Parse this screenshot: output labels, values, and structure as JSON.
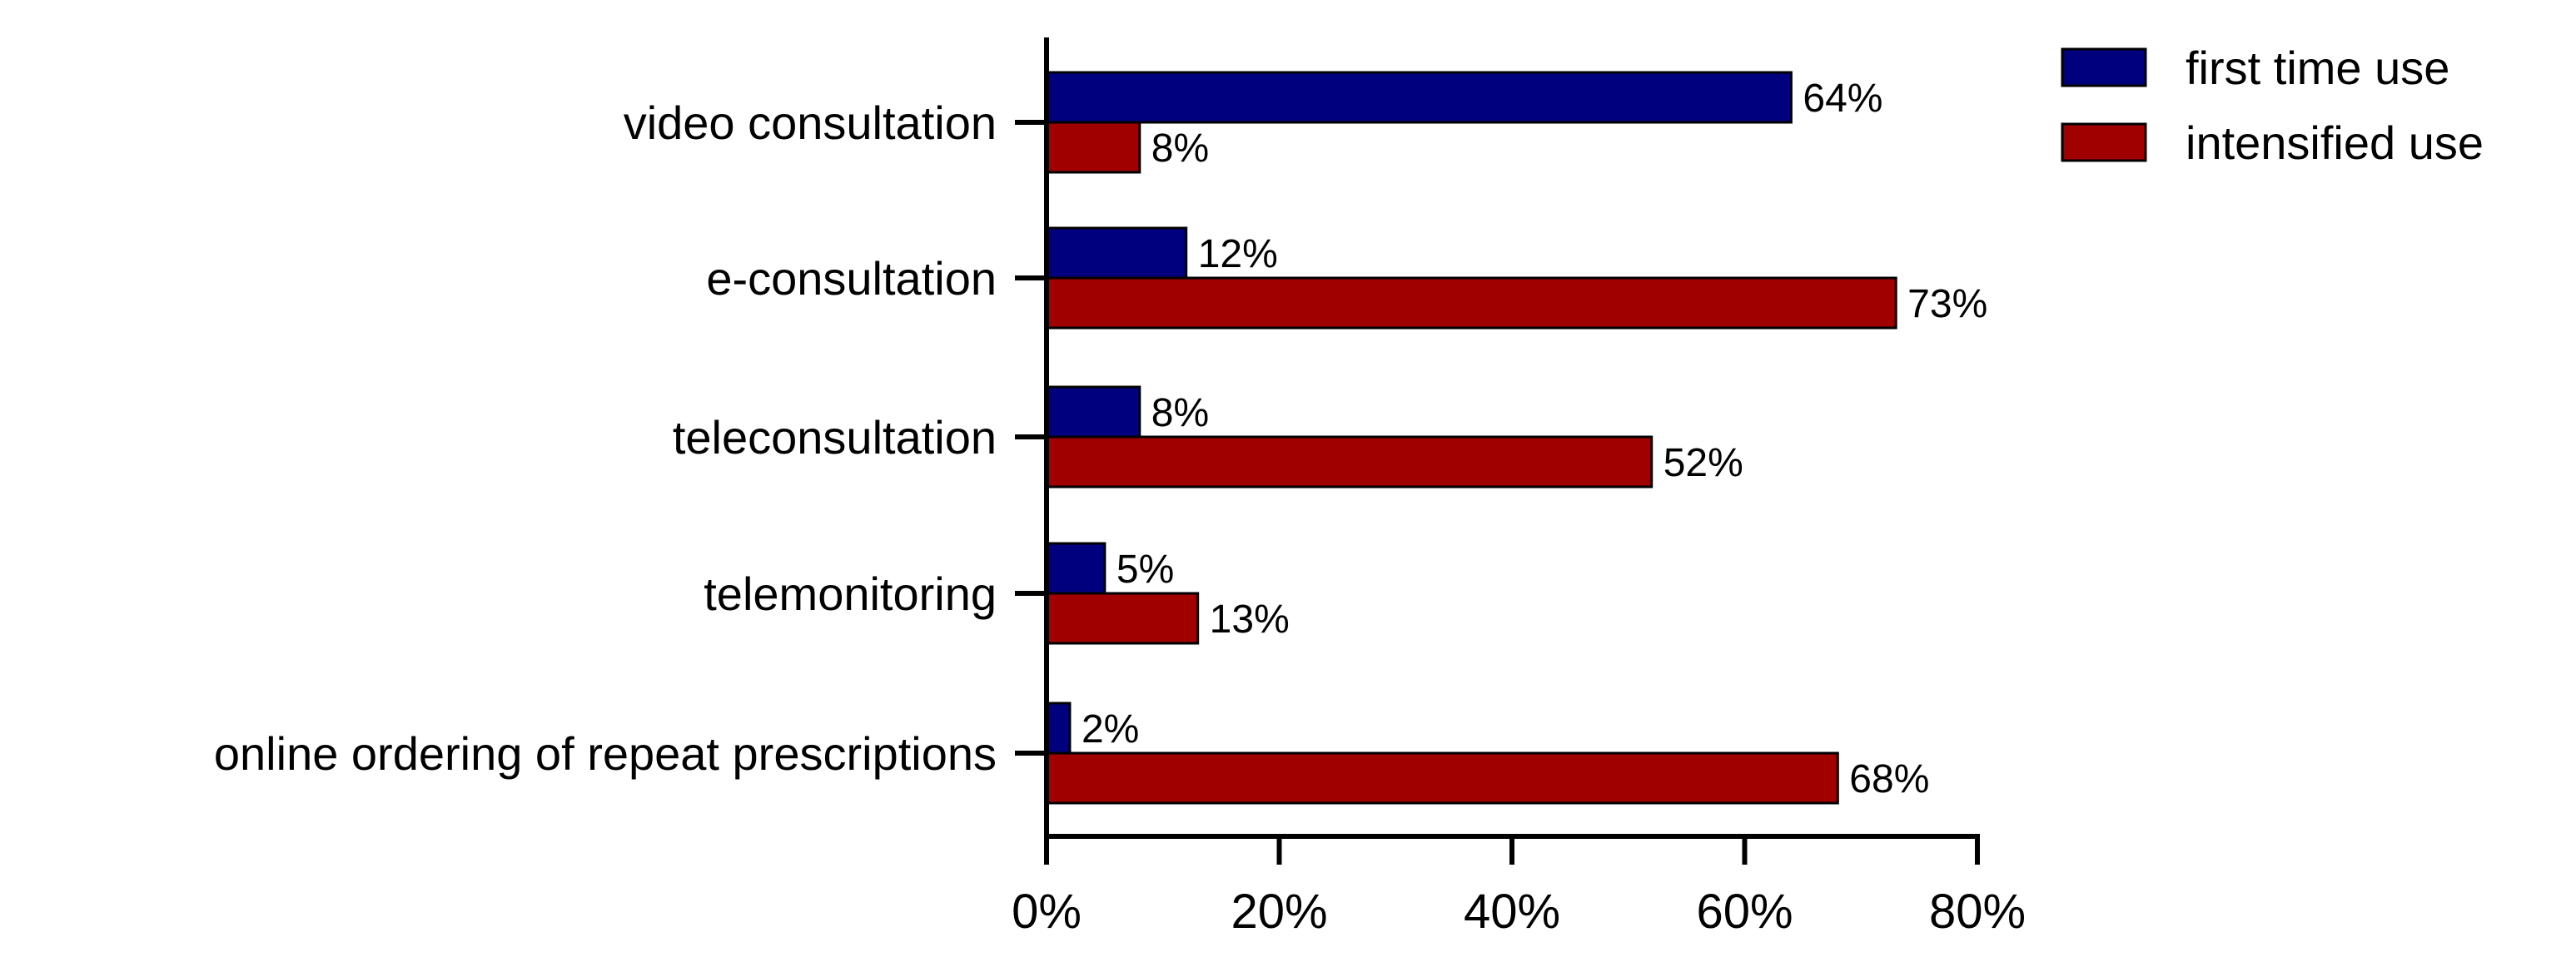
{
  "chart_data": {
    "type": "bar",
    "orientation": "horizontal",
    "categories": [
      "video consultation",
      "e-consultation",
      "teleconsultation",
      "telemonitoring",
      "online ordering of repeat prescriptions"
    ],
    "series": [
      {
        "name": "first time use",
        "color": "#00007f",
        "values": [
          64,
          12,
          8,
          5,
          2
        ],
        "labels": [
          "64%",
          "12%",
          "8%",
          "5%",
          "2%"
        ]
      },
      {
        "name": "intensified use",
        "color": "#a10000",
        "values": [
          8,
          73,
          52,
          13,
          68
        ],
        "labels": [
          "8%",
          "73%",
          "52%",
          "13%",
          "68%"
        ]
      }
    ],
    "xlim": [
      0,
      80
    ],
    "x_ticks": [
      0,
      20,
      40,
      60,
      80
    ],
    "x_tick_labels": [
      "0%",
      "20%",
      "40%",
      "60%",
      "80%"
    ],
    "xlabel": "",
    "ylabel": "",
    "title": "",
    "legend_position": "top-right",
    "grid": false
  }
}
